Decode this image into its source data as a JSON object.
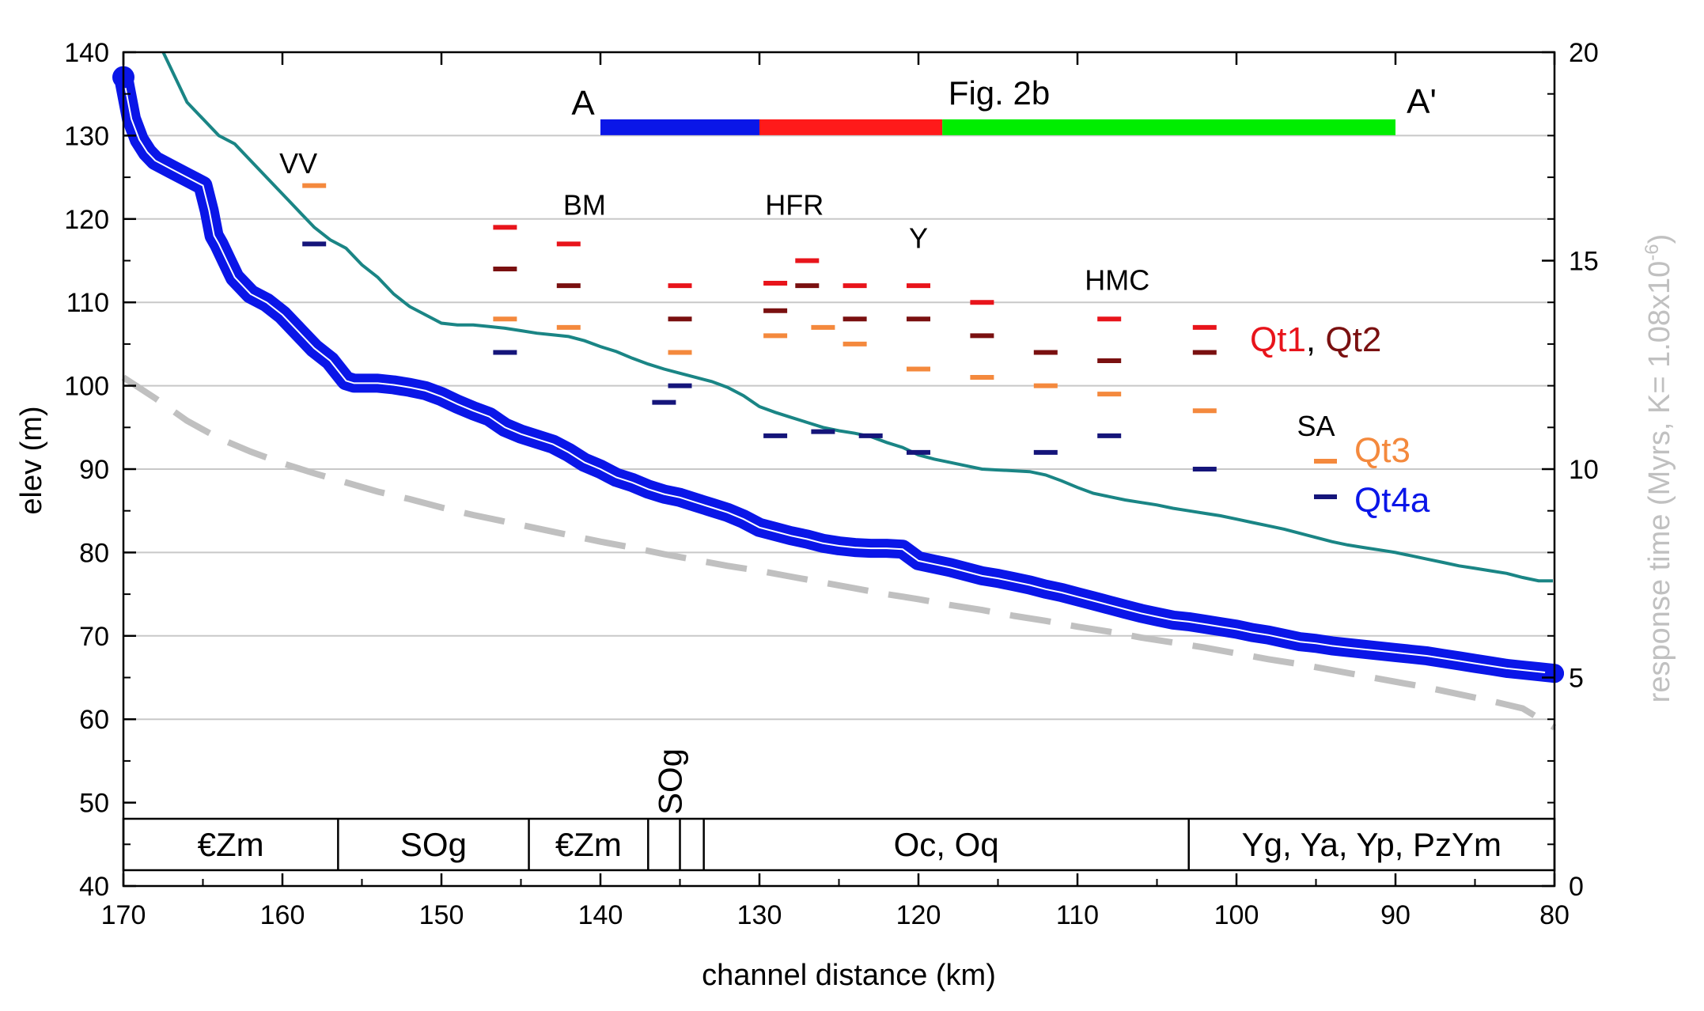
{
  "chart_data": {
    "type": "line",
    "xlabel": "channel distance (km)",
    "ylabel": "elev (m)",
    "y2label": "response time (Myrs, K= 1.08x10",
    "y2label_exp": "-6",
    "y2label_close": ")",
    "xlim": [
      170,
      80
    ],
    "ylim": [
      40,
      140
    ],
    "y2lim": [
      0,
      20
    ],
    "x_ticks": [
      "170",
      "160",
      "150",
      "140",
      "130",
      "120",
      "110",
      "100",
      "90",
      "80"
    ],
    "y_ticks": [
      "40",
      "50",
      "60",
      "70",
      "80",
      "90",
      "100",
      "110",
      "120",
      "130",
      "140"
    ],
    "y2_ticks": [
      "0",
      "5",
      "10",
      "15",
      "20"
    ],
    "grid": "horizontal",
    "colors": {
      "profile": "#0a16e8",
      "teal": "#1a8585",
      "dashed": "#c0c0c0",
      "qt1": "#e8141b",
      "qt2": "#7a1010",
      "qt3": "#f4893d",
      "qt4a": "#15157a",
      "bar_a": "#0a16e8",
      "bar_b": "#ff1a1a",
      "bar_c": "#00ee00"
    },
    "series": [
      {
        "key": "profile",
        "x": [
          170,
          169.5,
          169,
          168.5,
          168,
          167,
          166,
          165,
          164.6,
          164.3,
          164,
          163.5,
          163,
          162,
          161,
          160,
          159,
          158,
          157,
          156,
          155.5,
          155,
          154,
          153,
          152,
          151,
          150,
          149,
          148,
          147,
          146,
          145,
          144,
          143,
          142,
          141,
          140,
          139,
          138,
          137,
          136,
          135,
          134,
          133,
          132,
          131,
          130,
          129,
          128,
          127,
          126,
          125,
          124,
          123,
          122,
          121,
          120,
          119,
          118,
          117,
          116,
          115,
          114,
          113,
          112,
          111,
          110,
          109,
          108,
          107,
          106,
          105,
          104,
          103,
          102,
          101,
          100,
          99,
          98,
          97,
          96,
          95,
          94,
          93,
          92,
          91,
          90,
          89,
          88,
          87,
          86,
          85,
          84,
          83,
          82,
          81,
          80
        ],
        "y": [
          137,
          132,
          129.5,
          128,
          127,
          126,
          125,
          124,
          121,
          118,
          117,
          115,
          113,
          111,
          110,
          108.5,
          106.5,
          104.5,
          103,
          100.6,
          100.3,
          100.3,
          100.3,
          100.1,
          99.8,
          99.4,
          98.7,
          97.8,
          97,
          96.3,
          95,
          94.2,
          93.6,
          93,
          92,
          90.8,
          90,
          89,
          88.4,
          87.6,
          87,
          86.6,
          86,
          85.4,
          84.8,
          84,
          83,
          82.5,
          82,
          81.6,
          81.1,
          80.8,
          80.6,
          80.5,
          80.5,
          80.4,
          79,
          78.6,
          78.2,
          77.7,
          77.2,
          76.9,
          76.5,
          76.1,
          75.6,
          75.2,
          74.7,
          74.2,
          73.7,
          73.2,
          72.7,
          72.3,
          71.9,
          71.7,
          71.4,
          71.1,
          70.8,
          70.4,
          70.1,
          69.7,
          69.3,
          69.1,
          68.8,
          68.6,
          68.4,
          68.2,
          68,
          67.8,
          67.6,
          67.3,
          67,
          66.7,
          66.4,
          66.1,
          65.9,
          65.7,
          65.5
        ]
      },
      {
        "key": "response_time_solid",
        "x": [
          167.5,
          166,
          165,
          164,
          163,
          162.5,
          161.5,
          160.5,
          159.5,
          158.5,
          158,
          157,
          156,
          155,
          154,
          153,
          152,
          151,
          150,
          149,
          148,
          147,
          146,
          145,
          144,
          143,
          142,
          141,
          140,
          139,
          138,
          137,
          136,
          135,
          134,
          133,
          132,
          131,
          130,
          129,
          128,
          127,
          126,
          125,
          124,
          123,
          122,
          121,
          120,
          119,
          118,
          117,
          116,
          115,
          114,
          113,
          112,
          111,
          110,
          109,
          108,
          107,
          106,
          105,
          104,
          103,
          102,
          101,
          100,
          99,
          98,
          97,
          96,
          95,
          94,
          93,
          92,
          91,
          90,
          89,
          88,
          87,
          86,
          85,
          84,
          83,
          82,
          81,
          80.1
        ],
        "y": [
          140,
          134,
          132,
          130,
          129,
          128,
          126,
          124,
          122,
          120,
          119,
          117.5,
          116.5,
          114.5,
          113,
          111,
          109.5,
          108.5,
          107.5,
          107.3,
          107.3,
          107.1,
          106.9,
          106.6,
          106.3,
          106.1,
          105.9,
          105.4,
          104.7,
          104.1,
          103.3,
          102.6,
          102,
          101.5,
          101,
          100.5,
          99.8,
          98.8,
          97.5,
          96.8,
          96.2,
          95.6,
          95,
          94.6,
          94.3,
          93.9,
          93.2,
          92.6,
          91.7,
          91.2,
          90.8,
          90.4,
          90,
          89.9,
          89.8,
          89.7,
          89.3,
          88.6,
          87.8,
          87.1,
          86.7,
          86.3,
          86,
          85.7,
          85.3,
          85,
          84.7,
          84.4,
          84,
          83.6,
          83.2,
          82.8,
          82.3,
          81.8,
          81.3,
          80.9,
          80.6,
          80.3,
          80,
          79.6,
          79.2,
          78.8,
          78.4,
          78.1,
          77.8,
          77.5,
          77,
          76.6,
          76.6
        ]
      },
      {
        "key": "dashed_reference",
        "x": [
          170,
          168,
          166,
          164,
          162,
          160,
          158,
          156,
          154,
          152,
          150,
          148,
          146,
          144,
          142,
          140,
          138,
          136,
          134,
          132,
          130,
          128,
          126,
          124,
          122,
          120,
          118,
          116,
          114,
          112,
          110,
          108,
          106,
          104,
          102,
          100,
          98,
          96,
          94,
          92,
          90,
          88,
          86,
          84,
          82,
          80
        ],
        "y": [
          101,
          98.5,
          95.8,
          93.7,
          92.1,
          90.7,
          89.5,
          88.4,
          87.3,
          86.4,
          85.4,
          84.5,
          83.7,
          82.9,
          82.1,
          81.3,
          80.6,
          79.8,
          79.1,
          78.4,
          77.8,
          77.1,
          76.4,
          75.7,
          75,
          74.4,
          73.7,
          73.1,
          72.4,
          71.8,
          71.1,
          70.5,
          69.8,
          69.2,
          68.6,
          67.9,
          67.2,
          66.6,
          65.9,
          65.2,
          64.5,
          63.8,
          63,
          62.2,
          61.3,
          59
        ]
      }
    ],
    "terrace_series": [
      {
        "name": "Qt1",
        "color": "#e8141b",
        "x": [
          146,
          142,
          135,
          129,
          127,
          124,
          120,
          116,
          108,
          102
        ],
        "y": [
          119,
          117,
          112,
          112.3,
          115,
          112,
          112,
          110,
          108,
          107
        ]
      },
      {
        "name": "Qt2",
        "color": "#7a1010",
        "x": [
          146,
          142,
          135,
          129,
          127,
          124,
          120,
          116,
          112,
          108,
          102
        ],
        "y": [
          114,
          112,
          108,
          109,
          112,
          108,
          108,
          106,
          104,
          103,
          104
        ]
      },
      {
        "name": "Qt3",
        "color": "#f4893d",
        "x": [
          158,
          146,
          142,
          135,
          129,
          126,
          124,
          120,
          116,
          112,
          108,
          102
        ],
        "y": [
          124,
          108,
          107,
          104,
          106,
          107,
          105,
          102,
          101,
          100,
          99,
          97
        ]
      },
      {
        "name": "Qt4a",
        "color": "#15157a",
        "x": [
          158,
          146,
          136,
          135,
          129,
          126,
          123,
          120,
          112,
          108,
          102
        ],
        "y": [
          117,
          104,
          98,
          100,
          94,
          94.5,
          94,
          92,
          92,
          94,
          90
        ]
      }
    ],
    "site_labels": [
      {
        "text": "VV",
        "x": 159,
        "y": 125.5
      },
      {
        "text": "BM",
        "x": 141,
        "y": 120.5
      },
      {
        "text": "HFR",
        "x": 127.8,
        "y": 120.5
      },
      {
        "text": "Y",
        "x": 120,
        "y": 116.5
      },
      {
        "text": "HMC",
        "x": 107.5,
        "y": 111.5
      },
      {
        "text": "SA",
        "x": 95,
        "y": 94
      }
    ],
    "section_bar": {
      "caption": "Fig. 2b",
      "left_label": "A",
      "right_label": "A'",
      "y": 131,
      "segments": [
        {
          "from": 140,
          "to": 130,
          "color": "#0a16e8"
        },
        {
          "from": 130,
          "to": 118.5,
          "color": "#ff1a1a"
        },
        {
          "from": 118.5,
          "to": 90,
          "color": "#00ee00"
        }
      ]
    },
    "legend": {
      "qt1_label": "Qt1",
      "comma": ", ",
      "qt2_label": "Qt2",
      "qt3_label": "Qt3",
      "qt4a_label": "Qt4a"
    },
    "geology_units": [
      {
        "label": "€Zm",
        "from": 170,
        "to": 156.5
      },
      {
        "label": "SOg",
        "from": 156.5,
        "to": 144.5
      },
      {
        "label": "€Zm",
        "from": 144.5,
        "to": 137
      },
      {
        "label": "",
        "from": 137,
        "to": 135
      },
      {
        "label": "",
        "from": 135,
        "to": 133.5
      },
      {
        "label": "Oc, Oq",
        "from": 133.5,
        "to": 103
      },
      {
        "label": "Yg, Ya, Yp, PzYm",
        "from": 103,
        "to": 80
      }
    ],
    "rotated_unit_label": "SOg"
  }
}
